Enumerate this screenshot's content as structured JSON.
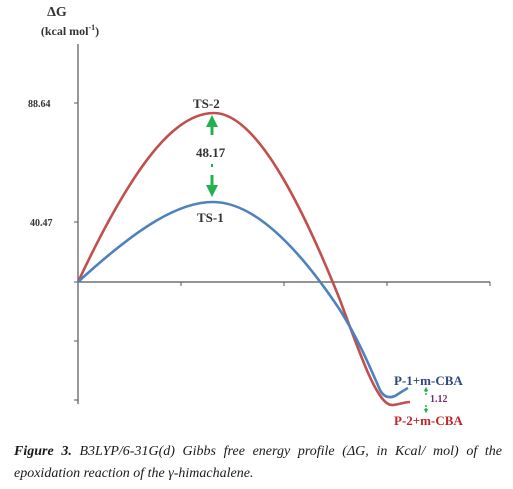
{
  "chart_data": {
    "type": "line",
    "ylabel": "ΔG",
    "yunit_prefix": "(kcal mol",
    "yunit_exp": "-1",
    "yunit_suffix": ")",
    "ytick_labels": [
      "88.64",
      "40.47"
    ],
    "ytick_values": [
      88.64,
      40.47
    ],
    "ylim": [
      -70,
      100
    ],
    "x": [
      0,
      1,
      2
    ],
    "series": [
      {
        "values": [
          0,
          88.64,
          -68
        ],
        "color": "#c0504d"
      },
      {
        "values": [
          0,
          40.47,
          -67
        ],
        "color": "#4f81bd"
      }
    ],
    "annotations": {
      "ts2": "TS-2",
      "ts1": "TS-1",
      "barrier_diff": "48.17",
      "p1": "P-1+m-CBA",
      "p2": "P-2+m-CBA",
      "product_diff": "1.12"
    },
    "arrow_color": "#22b14c"
  },
  "caption": {
    "figure_label": "Figure 3.",
    "text": " B3LYP/6-31G(d) Gibbs free energy profile (ΔG, in Kcal/ mol) of the epoxidation reaction of the γ-himachalene."
  }
}
